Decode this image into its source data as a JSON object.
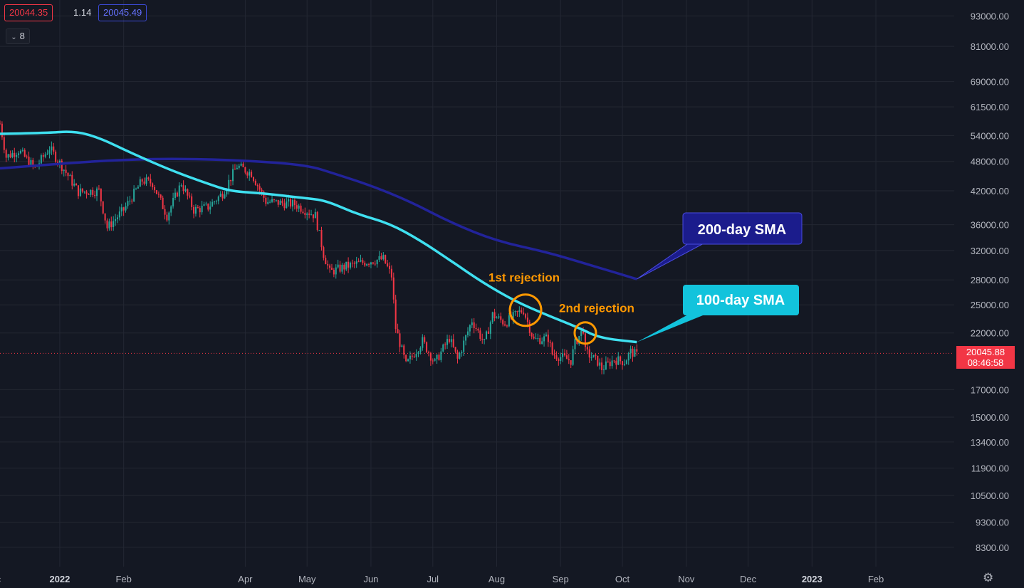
{
  "toolbar": {
    "price_red": "20044.35",
    "change": "1.14",
    "price_blue": "20045.49",
    "indicator_count": "8",
    "indicator_icon": "chevron-down-icon",
    "settings_icon": "gear-icon"
  },
  "last_price": {
    "value": "20045.88",
    "countdown": "08:46:58",
    "color": "#f23645"
  },
  "colors": {
    "background": "#141823",
    "grid": "#232733",
    "up": "#26a69a",
    "down": "#f23645",
    "sma100": "#3fe0f0",
    "sma200": "#22239a",
    "annotation": "#ff9800"
  },
  "chart_data": {
    "type": "candlestick",
    "title": "",
    "xlabel": "",
    "ylabel": "",
    "y_scale": "log",
    "ylim": [
      7600,
      100000
    ],
    "xlim": [
      "2021-12-03",
      "2023-03-11"
    ],
    "grid": true,
    "y_ticks": [
      93000,
      81000,
      69000,
      61500,
      54000,
      48000,
      42000,
      36000,
      32000,
      28000,
      25000,
      22000,
      17000,
      15000,
      13400,
      11900,
      10500,
      9300,
      8300
    ],
    "y_tick_labels": [
      "93000.00",
      "81000.00",
      "69000.00",
      "61500.00",
      "54000.00",
      "48000.00",
      "42000.00",
      "36000.00",
      "32000.00",
      "28000.00",
      "25000.00",
      "22000.00",
      "17000.00",
      "15000.00",
      "13400.00",
      "11900.00",
      "10500.00",
      "9300.00",
      "8300.00"
    ],
    "x_ticks": [
      {
        "label": "ec",
        "date": "2021-12-01"
      },
      {
        "label": "2022",
        "date": "2022-01-01",
        "bold": true
      },
      {
        "label": "Feb",
        "date": "2022-02-01"
      },
      {
        "label": "Apr",
        "date": "2022-04-01"
      },
      {
        "label": "May",
        "date": "2022-05-01"
      },
      {
        "label": "Jun",
        "date": "2022-06-01"
      },
      {
        "label": "Jul",
        "date": "2022-07-01"
      },
      {
        "label": "Aug",
        "date": "2022-08-01"
      },
      {
        "label": "Sep",
        "date": "2022-09-01"
      },
      {
        "label": "Oct",
        "date": "2022-10-01"
      },
      {
        "label": "Nov",
        "date": "2022-11-01"
      },
      {
        "label": "Dec",
        "date": "2022-12-01"
      },
      {
        "label": "2023",
        "date": "2023-01-01",
        "bold": true
      },
      {
        "label": "Feb",
        "date": "2023-02-01"
      }
    ],
    "price_keypoints": [
      [
        "2021-12-03",
        57000
      ],
      [
        "2021-12-06",
        49000
      ],
      [
        "2021-12-12",
        50500
      ],
      [
        "2021-12-20",
        46500
      ],
      [
        "2021-12-27",
        51000
      ],
      [
        "2022-01-02",
        47000
      ],
      [
        "2022-01-10",
        41800
      ],
      [
        "2022-01-20",
        42000
      ],
      [
        "2022-01-24",
        35500
      ],
      [
        "2022-02-01",
        38500
      ],
      [
        "2022-02-10",
        44000
      ],
      [
        "2022-02-15",
        43500
      ],
      [
        "2022-02-22",
        37500
      ],
      [
        "2022-03-01",
        43500
      ],
      [
        "2022-03-07",
        38500
      ],
      [
        "2022-03-14",
        39000
      ],
      [
        "2022-03-21",
        41500
      ],
      [
        "2022-03-28",
        47000
      ],
      [
        "2022-04-04",
        45500
      ],
      [
        "2022-04-11",
        40000
      ],
      [
        "2022-04-25",
        39500
      ],
      [
        "2022-05-05",
        37500
      ],
      [
        "2022-05-09",
        31500
      ],
      [
        "2022-05-12",
        29000
      ],
      [
        "2022-05-20",
        29800
      ],
      [
        "2022-05-31",
        30500
      ],
      [
        "2022-06-07",
        30800
      ],
      [
        "2022-06-11",
        28500
      ],
      [
        "2022-06-13",
        22500
      ],
      [
        "2022-06-18",
        19000
      ],
      [
        "2022-06-26",
        21200
      ],
      [
        "2022-07-02",
        19200
      ],
      [
        "2022-07-09",
        21500
      ],
      [
        "2022-07-13",
        19500
      ],
      [
        "2022-07-20",
        23300
      ],
      [
        "2022-07-26",
        21000
      ],
      [
        "2022-07-30",
        23900
      ],
      [
        "2022-08-05",
        23000
      ],
      [
        "2022-08-12",
        24200
      ],
      [
        "2022-08-14",
        24400
      ],
      [
        "2022-08-19",
        21300
      ],
      [
        "2022-08-26",
        21500
      ],
      [
        "2022-08-28",
        20000
      ],
      [
        "2022-09-06",
        19400
      ],
      [
        "2022-09-08",
        21000
      ],
      [
        "2022-09-12",
        22400
      ],
      [
        "2022-09-13",
        20200
      ],
      [
        "2022-09-19",
        19300
      ],
      [
        "2022-09-21",
        18700
      ],
      [
        "2022-09-27",
        19500
      ],
      [
        "2022-10-02",
        19300
      ],
      [
        "2022-10-05",
        20200
      ],
      [
        "2022-10-08",
        19900
      ]
    ],
    "series": [
      {
        "name": "100-day SMA",
        "color": "#3fe0f0",
        "points": [
          [
            "2021-12-03",
            54400
          ],
          [
            "2021-12-25",
            54600
          ],
          [
            "2022-01-08",
            55100
          ],
          [
            "2022-01-20",
            53500
          ],
          [
            "2022-02-05",
            49800
          ],
          [
            "2022-02-25",
            45900
          ],
          [
            "2022-03-15",
            43200
          ],
          [
            "2022-03-25",
            41900
          ],
          [
            "2022-04-10",
            41500
          ],
          [
            "2022-04-30",
            40600
          ],
          [
            "2022-05-10",
            40200
          ],
          [
            "2022-05-25",
            37800
          ],
          [
            "2022-06-10",
            36200
          ],
          [
            "2022-06-25",
            33500
          ],
          [
            "2022-07-10",
            30500
          ],
          [
            "2022-07-25",
            27700
          ],
          [
            "2022-08-10",
            25400
          ],
          [
            "2022-08-25",
            23900
          ],
          [
            "2022-09-10",
            22500
          ],
          [
            "2022-09-20",
            21500
          ],
          [
            "2022-10-08",
            21100
          ]
        ]
      },
      {
        "name": "200-day SMA",
        "color": "#22239a",
        "points": [
          [
            "2021-12-03",
            46500
          ],
          [
            "2022-01-01",
            47500
          ],
          [
            "2022-02-01",
            48400
          ],
          [
            "2022-03-01",
            48600
          ],
          [
            "2022-04-01",
            48200
          ],
          [
            "2022-05-01",
            47200
          ],
          [
            "2022-05-15",
            45300
          ],
          [
            "2022-06-01",
            43000
          ],
          [
            "2022-06-20",
            40000
          ],
          [
            "2022-07-10",
            36300
          ],
          [
            "2022-08-01",
            33400
          ],
          [
            "2022-08-25",
            31800
          ],
          [
            "2022-09-15",
            30000
          ],
          [
            "2022-10-08",
            28100
          ]
        ]
      }
    ],
    "annotations": {
      "first_rejection": {
        "label": "1st rejection",
        "date": "2022-08-15",
        "price": 24400
      },
      "second_rejection": {
        "label": "2nd rejection",
        "date": "2022-09-13",
        "price": 22000
      },
      "sma200_callout": {
        "label": "200-day SMA"
      },
      "sma100_callout": {
        "label": "100-day SMA"
      }
    }
  }
}
